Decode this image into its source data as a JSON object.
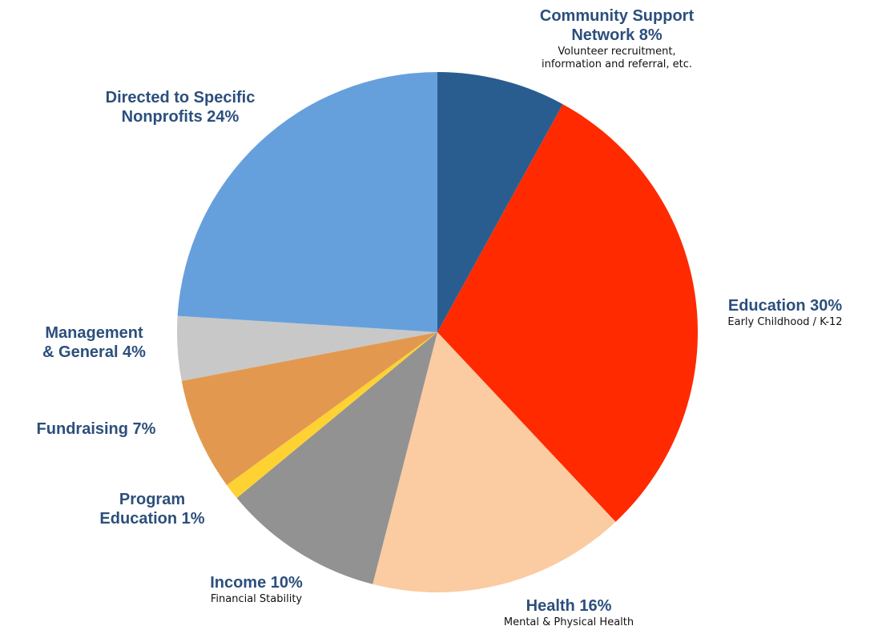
{
  "chart_data": {
    "type": "pie",
    "title": "",
    "start_angle_deg": 0,
    "direction": "clockwise",
    "slices": [
      {
        "label_lines": [
          "Community Support",
          "Network  8%"
        ],
        "sub_lines": [
          "Volunteer recruitment,",
          "information and referral, etc."
        ],
        "value": 8,
        "color": "#2a5d8f"
      },
      {
        "label_lines": [
          "Education 30%"
        ],
        "sub_lines": [
          "Early Childhood / K-12"
        ],
        "value": 30,
        "color": "#ff2a00"
      },
      {
        "label_lines": [
          "Health 16%"
        ],
        "sub_lines": [
          "Mental & Physical Health"
        ],
        "value": 16,
        "color": "#fbcba1"
      },
      {
        "label_lines": [
          "Income 10%"
        ],
        "sub_lines": [
          "Financial Stability"
        ],
        "value": 10,
        "color": "#929292"
      },
      {
        "label_lines": [
          "Program",
          "Education 1%"
        ],
        "sub_lines": [],
        "value": 1,
        "color": "#fdd232"
      },
      {
        "label_lines": [
          "Fundraising 7%"
        ],
        "sub_lines": [],
        "value": 7,
        "color": "#e2994f"
      },
      {
        "label_lines": [
          "Management",
          "& General 4%"
        ],
        "sub_lines": [],
        "value": 4,
        "color": "#c8c8c8"
      },
      {
        "label_lines": [
          "Directed to Specific",
          "Nonprofits 24%"
        ],
        "sub_lines": [],
        "value": 24,
        "color": "#66a0dc"
      }
    ]
  }
}
